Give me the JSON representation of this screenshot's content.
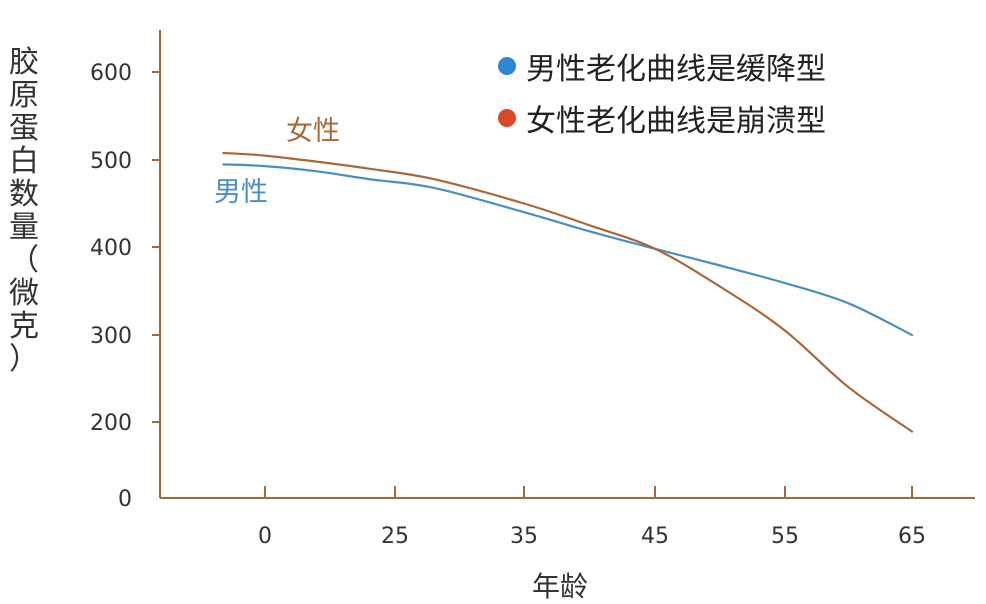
{
  "chart_data": {
    "type": "line",
    "ylabel": "胶原蛋白数量（微克）",
    "ylabel_chars": [
      "胶",
      "原",
      "蛋",
      "白",
      "数",
      "量",
      "（",
      "微",
      "克",
      "）"
    ],
    "xlabel": "年龄",
    "x_ticks": [
      "0",
      "25",
      "35",
      "45",
      "55",
      "65"
    ],
    "y_ticks": [
      "0",
      "200",
      "300",
      "400",
      "500",
      "600"
    ],
    "ylim": [
      0,
      650
    ],
    "grid": false,
    "series": [
      {
        "name": "男性",
        "color": "#4a8fc4",
        "points": [
          [
            -8,
            495
          ],
          [
            0,
            493
          ],
          [
            10,
            487
          ],
          [
            20,
            478
          ],
          [
            28,
            468
          ],
          [
            35,
            440
          ],
          [
            40,
            418
          ],
          [
            45,
            398
          ],
          [
            50,
            379
          ],
          [
            55,
            359
          ],
          [
            60,
            336
          ],
          [
            65,
            300
          ]
        ]
      },
      {
        "name": "女性",
        "color": "#a86838",
        "points": [
          [
            -8,
            508
          ],
          [
            0,
            505
          ],
          [
            10,
            498
          ],
          [
            20,
            490
          ],
          [
            28,
            478
          ],
          [
            35,
            450
          ],
          [
            40,
            425
          ],
          [
            45,
            398
          ],
          [
            50,
            355
          ],
          [
            55,
            305
          ],
          [
            60,
            240
          ],
          [
            65,
            175
          ]
        ]
      }
    ],
    "legend": {
      "position": "top-right",
      "entries": [
        {
          "label": "男性老化曲线是缓降型",
          "color": "#2f86d4"
        },
        {
          "label": "女性老化曲线是崩溃型",
          "color": "#d84a2a"
        }
      ]
    },
    "axis_color": "#a06a3c",
    "tick_text_color": "#333333"
  }
}
